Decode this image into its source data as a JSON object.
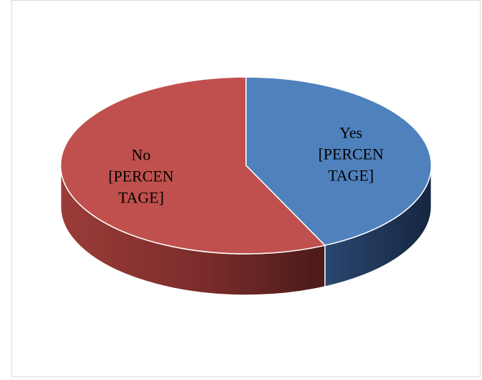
{
  "chart_data": {
    "type": "pie",
    "style": "3d",
    "title": "",
    "legend": "none",
    "slices": [
      {
        "category": "Yes",
        "value": 43,
        "color": "#4f81bd",
        "side_color": "#1f3655",
        "label_lines": [
          "Yes",
          "[PERCEN",
          "TAGE]"
        ]
      },
      {
        "category": "No",
        "value": 57,
        "color": "#c0504d",
        "side_color": "#8c3432",
        "label_lines": [
          "No",
          "[PERCEN",
          "TAGE]"
        ]
      }
    ]
  }
}
